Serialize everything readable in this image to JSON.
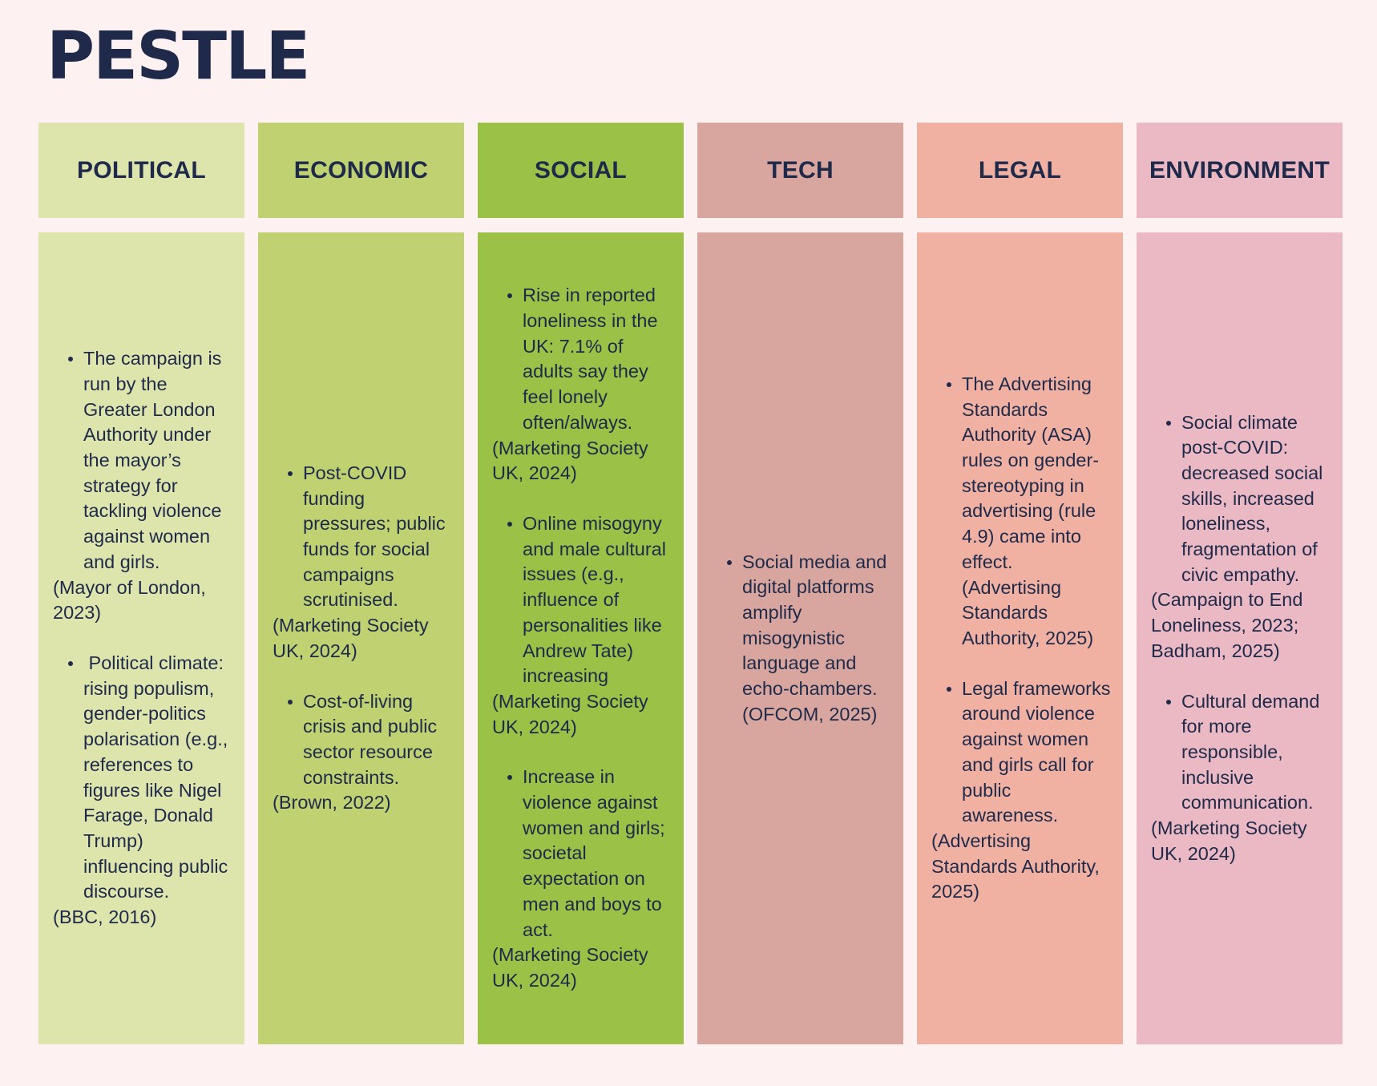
{
  "title": "PESTLE",
  "colors": {
    "political": "#dde5ad",
    "economic": "#bfd170",
    "social": "#9bc146",
    "tech": "#d8a69e",
    "legal": "#f0b1a2",
    "environment": "#ebb9c3",
    "text": "#1f2a4a",
    "background": "#fdf2f1"
  },
  "columns": [
    {
      "header": "POLITICAL",
      "entries": [
        {
          "text": "The campaign is run by the Greater London Authority under the mayor’s strategy for tackling violence against women and girls.",
          "cite": "(Mayor of London, 2023)"
        },
        {
          "text": " Political climate: rising populism, gender-politics polarisation (e.g., references to figures like Nigel Farage, Donald Trump) influencing public discourse.",
          "cite": "(BBC, 2016)"
        }
      ]
    },
    {
      "header": "ECONOMIC",
      "entries": [
        {
          "text": "Post-COVID funding pressures; public funds for social campaigns scrutinised.",
          "cite": "(Marketing Society UK, 2024)"
        },
        {
          "text": "Cost-of-living crisis and public sector resource constraints.",
          "cite": "(Brown, 2022)"
        }
      ]
    },
    {
      "header": "SOCIAL",
      "entries": [
        {
          "text": "Rise in reported loneliness in the UK: 7.1% of adults say they feel lonely often/always.",
          "cite": "(Marketing Society UK, 2024)"
        },
        {
          "text": "Online misogyny and male cultural issues (e.g., influence of personalities like Andrew Tate) increasing",
          "cite": "(Marketing Society UK, 2024)"
        },
        {
          "text": "Increase in violence against women and girls; societal expectation on men and boys to act.",
          "cite": "(Marketing Society UK, 2024)"
        }
      ]
    },
    {
      "header": "TECH",
      "entries": [
        {
          "text": "Social media and digital platforms amplify misogynistic language and echo-chambers. (OFCOM, 2025)",
          "cite": ""
        }
      ]
    },
    {
      "header": "LEGAL",
      "entries": [
        {
          "text": "The Advertising Standards Authority (ASA) rules on gender-stereotyping in advertising (rule 4.9) came into effect. (Advertising Standards Authority, 2025)",
          "cite": ""
        },
        {
          "text": "Legal frameworks around violence against women and girls call for public awareness.",
          "cite": "(Advertising Standards Authority, 2025)"
        }
      ]
    },
    {
      "header": "ENVIRONMENT",
      "entries": [
        {
          "text": "Social climate post-COVID: decreased social skills, increased loneliness, fragmentation of civic empathy.",
          "cite": "(Campaign to End Loneliness, 2023; Badham, 2025)"
        },
        {
          "text": "Cultural demand for more responsible, inclusive communication.",
          "cite": "(Marketing Society UK, 2024)"
        }
      ]
    }
  ]
}
